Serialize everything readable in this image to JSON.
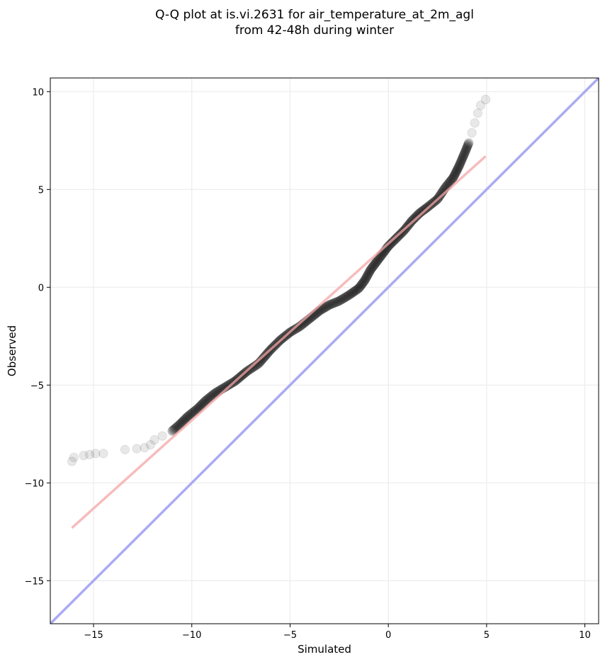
{
  "chart_data": {
    "type": "scatter",
    "title_line1": "Q-Q plot at is.vi.2631 for air_temperature_at_2m_agl",
    "title_line2": "from 42-48h during winter",
    "xlabel": "Simulated",
    "ylabel": "Observed",
    "xlim": [
      -17.2,
      10.7
    ],
    "ylim": [
      -17.2,
      10.7
    ],
    "xticks": [
      -15,
      -10,
      -5,
      0,
      5,
      10
    ],
    "yticks": [
      -15,
      -10,
      -5,
      0,
      5,
      10
    ],
    "xtick_labels": [
      "−15",
      "−10",
      "−5",
      "0",
      "5",
      "10"
    ],
    "ytick_labels": [
      "−15",
      "−10",
      "−5",
      "0",
      "5",
      "10"
    ],
    "grid": true,
    "quantile_curve": [
      [
        -16.1,
        -8.9
      ],
      [
        -16.0,
        -8.7
      ],
      [
        -15.5,
        -8.6
      ],
      [
        -15.2,
        -8.55
      ],
      [
        -14.9,
        -8.5
      ],
      [
        -14.5,
        -8.5
      ],
      [
        -13.4,
        -8.3
      ],
      [
        -12.8,
        -8.25
      ],
      [
        -12.4,
        -8.2
      ],
      [
        -12.1,
        -8.05
      ],
      [
        -11.9,
        -7.8
      ],
      [
        -11.5,
        -7.6
      ],
      [
        -11.0,
        -7.35
      ],
      [
        -10.6,
        -7.0
      ],
      [
        -10.2,
        -6.6
      ],
      [
        -9.7,
        -6.2
      ],
      [
        -9.3,
        -5.8
      ],
      [
        -8.8,
        -5.4
      ],
      [
        -8.3,
        -5.1
      ],
      [
        -7.8,
        -4.8
      ],
      [
        -7.2,
        -4.3
      ],
      [
        -6.6,
        -3.9
      ],
      [
        -6.0,
        -3.2
      ],
      [
        -5.5,
        -2.7
      ],
      [
        -5.0,
        -2.3
      ],
      [
        -4.5,
        -2.0
      ],
      [
        -4.0,
        -1.6
      ],
      [
        -3.5,
        -1.2
      ],
      [
        -3.0,
        -0.9
      ],
      [
        -2.5,
        -0.7
      ],
      [
        -2.0,
        -0.4
      ],
      [
        -1.5,
        -0.05
      ],
      [
        -1.2,
        0.35
      ],
      [
        -0.9,
        0.9
      ],
      [
        -0.6,
        1.3
      ],
      [
        -0.3,
        1.7
      ],
      [
        0.0,
        2.1
      ],
      [
        0.4,
        2.5
      ],
      [
        0.8,
        2.9
      ],
      [
        1.2,
        3.4
      ],
      [
        1.6,
        3.8
      ],
      [
        2.0,
        4.1
      ],
      [
        2.5,
        4.5
      ],
      [
        2.9,
        5.1
      ],
      [
        3.3,
        5.6
      ],
      [
        3.6,
        6.2
      ],
      [
        3.9,
        6.9
      ],
      [
        4.1,
        7.4
      ],
      [
        4.25,
        7.9
      ],
      [
        4.4,
        8.4
      ],
      [
        4.55,
        8.9
      ],
      [
        4.7,
        9.3
      ],
      [
        4.95,
        9.6
      ]
    ],
    "fit_line": {
      "x": [
        -16.1,
        4.95
      ],
      "y": [
        -12.3,
        6.7
      ]
    },
    "identity_line": {
      "x": [
        -17.2,
        10.7
      ],
      "y": [
        -17.2,
        10.7
      ]
    },
    "colors": {
      "points": "#000000",
      "fit_line": "#f4a6a6",
      "identity_line": "#aaaaf4",
      "grid": "#ececec"
    }
  }
}
